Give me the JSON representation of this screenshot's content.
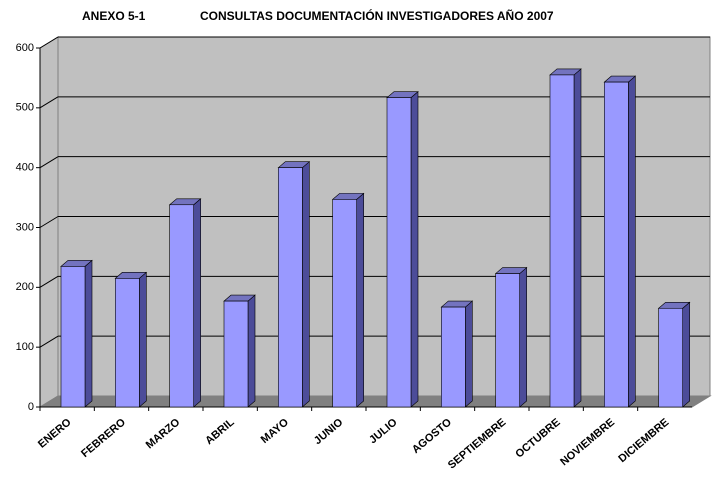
{
  "chart_data": {
    "type": "bar",
    "annex": "ANEXO 5-1",
    "title": "CONSULTAS DOCUMENTACIÓN INVESTIGADORES AÑO 2007",
    "categories": [
      "ENERO",
      "FEBRERO",
      "MARZO",
      "ABRIL",
      "MAYO",
      "JUNIO",
      "JULIO",
      "AGOSTO",
      "SEPTIEMBRE",
      "OCTUBRE",
      "NOVIEMBRE",
      "DICIEMBRE"
    ],
    "values": [
      235,
      215,
      338,
      177,
      400,
      347,
      517,
      167,
      223,
      555,
      543,
      165
    ],
    "color": "#9999ff",
    "ylim": [
      0,
      600
    ],
    "yticks": [
      0,
      100,
      200,
      300,
      400,
      500,
      600
    ],
    "grid": true
  }
}
